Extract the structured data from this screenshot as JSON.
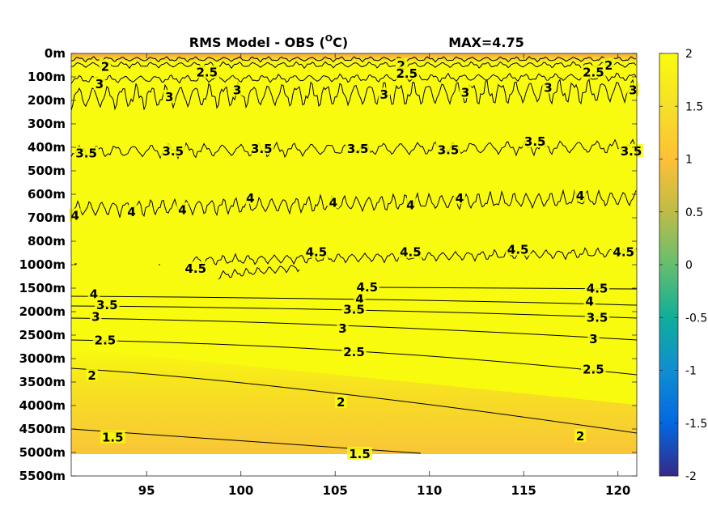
{
  "chart_data": {
    "type": "heatmap",
    "title": "RMS Model - OBS (",
    "title_unit": "O",
    "title_unit_tail": "C)",
    "title_max": "MAX=4.75",
    "xlim": [
      91,
      121
    ],
    "x_ticks": [
      95,
      100,
      105,
      110,
      115,
      120
    ],
    "x_tick_labels": [
      "95",
      "100",
      "105",
      "110",
      "115",
      "120"
    ],
    "y_tick_labels": [
      "0m",
      "100m",
      "200m",
      "300m",
      "400m",
      "500m",
      "600m",
      "700m",
      "800m",
      "1000m",
      "1500m",
      "2000m",
      "2500m",
      "3000m",
      "3500m",
      "4000m",
      "4500m",
      "5000m",
      "5500m"
    ],
    "colorbar": {
      "colormap": "parula",
      "range": [
        -2,
        2
      ],
      "ticks": [
        2,
        1.5,
        1,
        0.5,
        0,
        -0.5,
        -1,
        -1.5,
        -2
      ],
      "tick_labels": [
        "2",
        "1.5",
        "1",
        "0.5",
        "0",
        "-0.5",
        "-1",
        "-1.5",
        "-2"
      ],
      "colors": [
        "#352a87",
        "#0268e1",
        "#108ed2",
        "#0fae99",
        "#65be6e",
        "#bebc48",
        "#fec035",
        "#f5e028",
        "#f9fb0e"
      ]
    },
    "colors": {
      "saturated": "#f9fb0e",
      "deep_gradient_low": "#f9c538",
      "surface_band": "#f5a73c",
      "no_data": "#ffffff"
    },
    "contours": [
      {
        "level": 2,
        "labels": [
          {
            "x": 92.8,
            "y": 0.6
          },
          {
            "x": 108.5,
            "y": 0.55
          },
          {
            "x": 119.5,
            "y": 0.55
          }
        ]
      },
      {
        "level": 2.5,
        "labels": [
          {
            "x": 98.2,
            "y": 0.85
          },
          {
            "x": 108.8,
            "y": 0.9
          },
          {
            "x": 118.7,
            "y": 0.85
          }
        ]
      },
      {
        "level": 3,
        "labels": [
          {
            "x": 92.5,
            "y": 1.35
          },
          {
            "x": 96.2,
            "y": 1.9
          },
          {
            "x": 99.8,
            "y": 1.6
          },
          {
            "x": 107.6,
            "y": 1.8
          },
          {
            "x": 111.9,
            "y": 1.7
          },
          {
            "x": 116.3,
            "y": 1.5
          },
          {
            "x": 120.8,
            "y": 1.6
          }
        ]
      },
      {
        "level": 3.5,
        "labels": [
          {
            "x": 91.8,
            "y": 4.3
          },
          {
            "x": 96.4,
            "y": 4.2
          },
          {
            "x": 101.1,
            "y": 4.1
          },
          {
            "x": 106.2,
            "y": 4.1
          },
          {
            "x": 111.0,
            "y": 4.15
          },
          {
            "x": 115.6,
            "y": 3.8
          },
          {
            "x": 120.7,
            "y": 4.2
          }
        ]
      },
      {
        "level": 4,
        "labels": [
          {
            "x": 91.2,
            "y": 6.95
          },
          {
            "x": 94.2,
            "y": 6.8
          },
          {
            "x": 96.9,
            "y": 6.7
          },
          {
            "x": 100.5,
            "y": 6.2
          },
          {
            "x": 104.9,
            "y": 6.4
          },
          {
            "x": 109.0,
            "y": 6.5
          },
          {
            "x": 111.6,
            "y": 6.2
          },
          {
            "x": 118.0,
            "y": 6.1
          }
        ]
      },
      {
        "level": 4.5,
        "labels": [
          {
            "x": 97.6,
            "y": 9.2
          },
          {
            "x": 104.0,
            "y": 8.5
          },
          {
            "x": 109.0,
            "y": 8.5
          },
          {
            "x": 114.7,
            "y": 8.4
          },
          {
            "x": 120.3,
            "y": 8.5
          }
        ]
      },
      {
        "level": 4.5,
        "labels": [
          {
            "x": 106.7,
            "y": 10.0
          },
          {
            "x": 118.9,
            "y": 10.05
          }
        ]
      },
      {
        "level": 4,
        "labels": [
          {
            "x": 92.2,
            "y": 10.3
          },
          {
            "x": 106.3,
            "y": 10.5
          },
          {
            "x": 118.5,
            "y": 10.6
          }
        ]
      },
      {
        "level": 3.5,
        "labels": [
          {
            "x": 92.9,
            "y": 10.75
          },
          {
            "x": 106.0,
            "y": 10.95
          },
          {
            "x": 118.9,
            "y": 11.3
          }
        ]
      },
      {
        "level": 3,
        "labels": [
          {
            "x": 92.3,
            "y": 11.25
          },
          {
            "x": 105.4,
            "y": 11.75
          },
          {
            "x": 118.7,
            "y": 12.2
          }
        ]
      },
      {
        "level": 2.5,
        "labels": [
          {
            "x": 92.8,
            "y": 12.25
          },
          {
            "x": 106.0,
            "y": 12.75
          },
          {
            "x": 118.7,
            "y": 13.5
          }
        ]
      },
      {
        "level": 2,
        "labels": [
          {
            "x": 92.1,
            "y": 13.75
          },
          {
            "x": 105.3,
            "y": 14.9
          },
          {
            "x": 118.0,
            "y": 16.35
          }
        ]
      },
      {
        "level": 1.5,
        "labels": [
          {
            "x": 93.2,
            "y": 16.4
          },
          {
            "x": 106.3,
            "y": 17.1
          }
        ]
      }
    ]
  }
}
